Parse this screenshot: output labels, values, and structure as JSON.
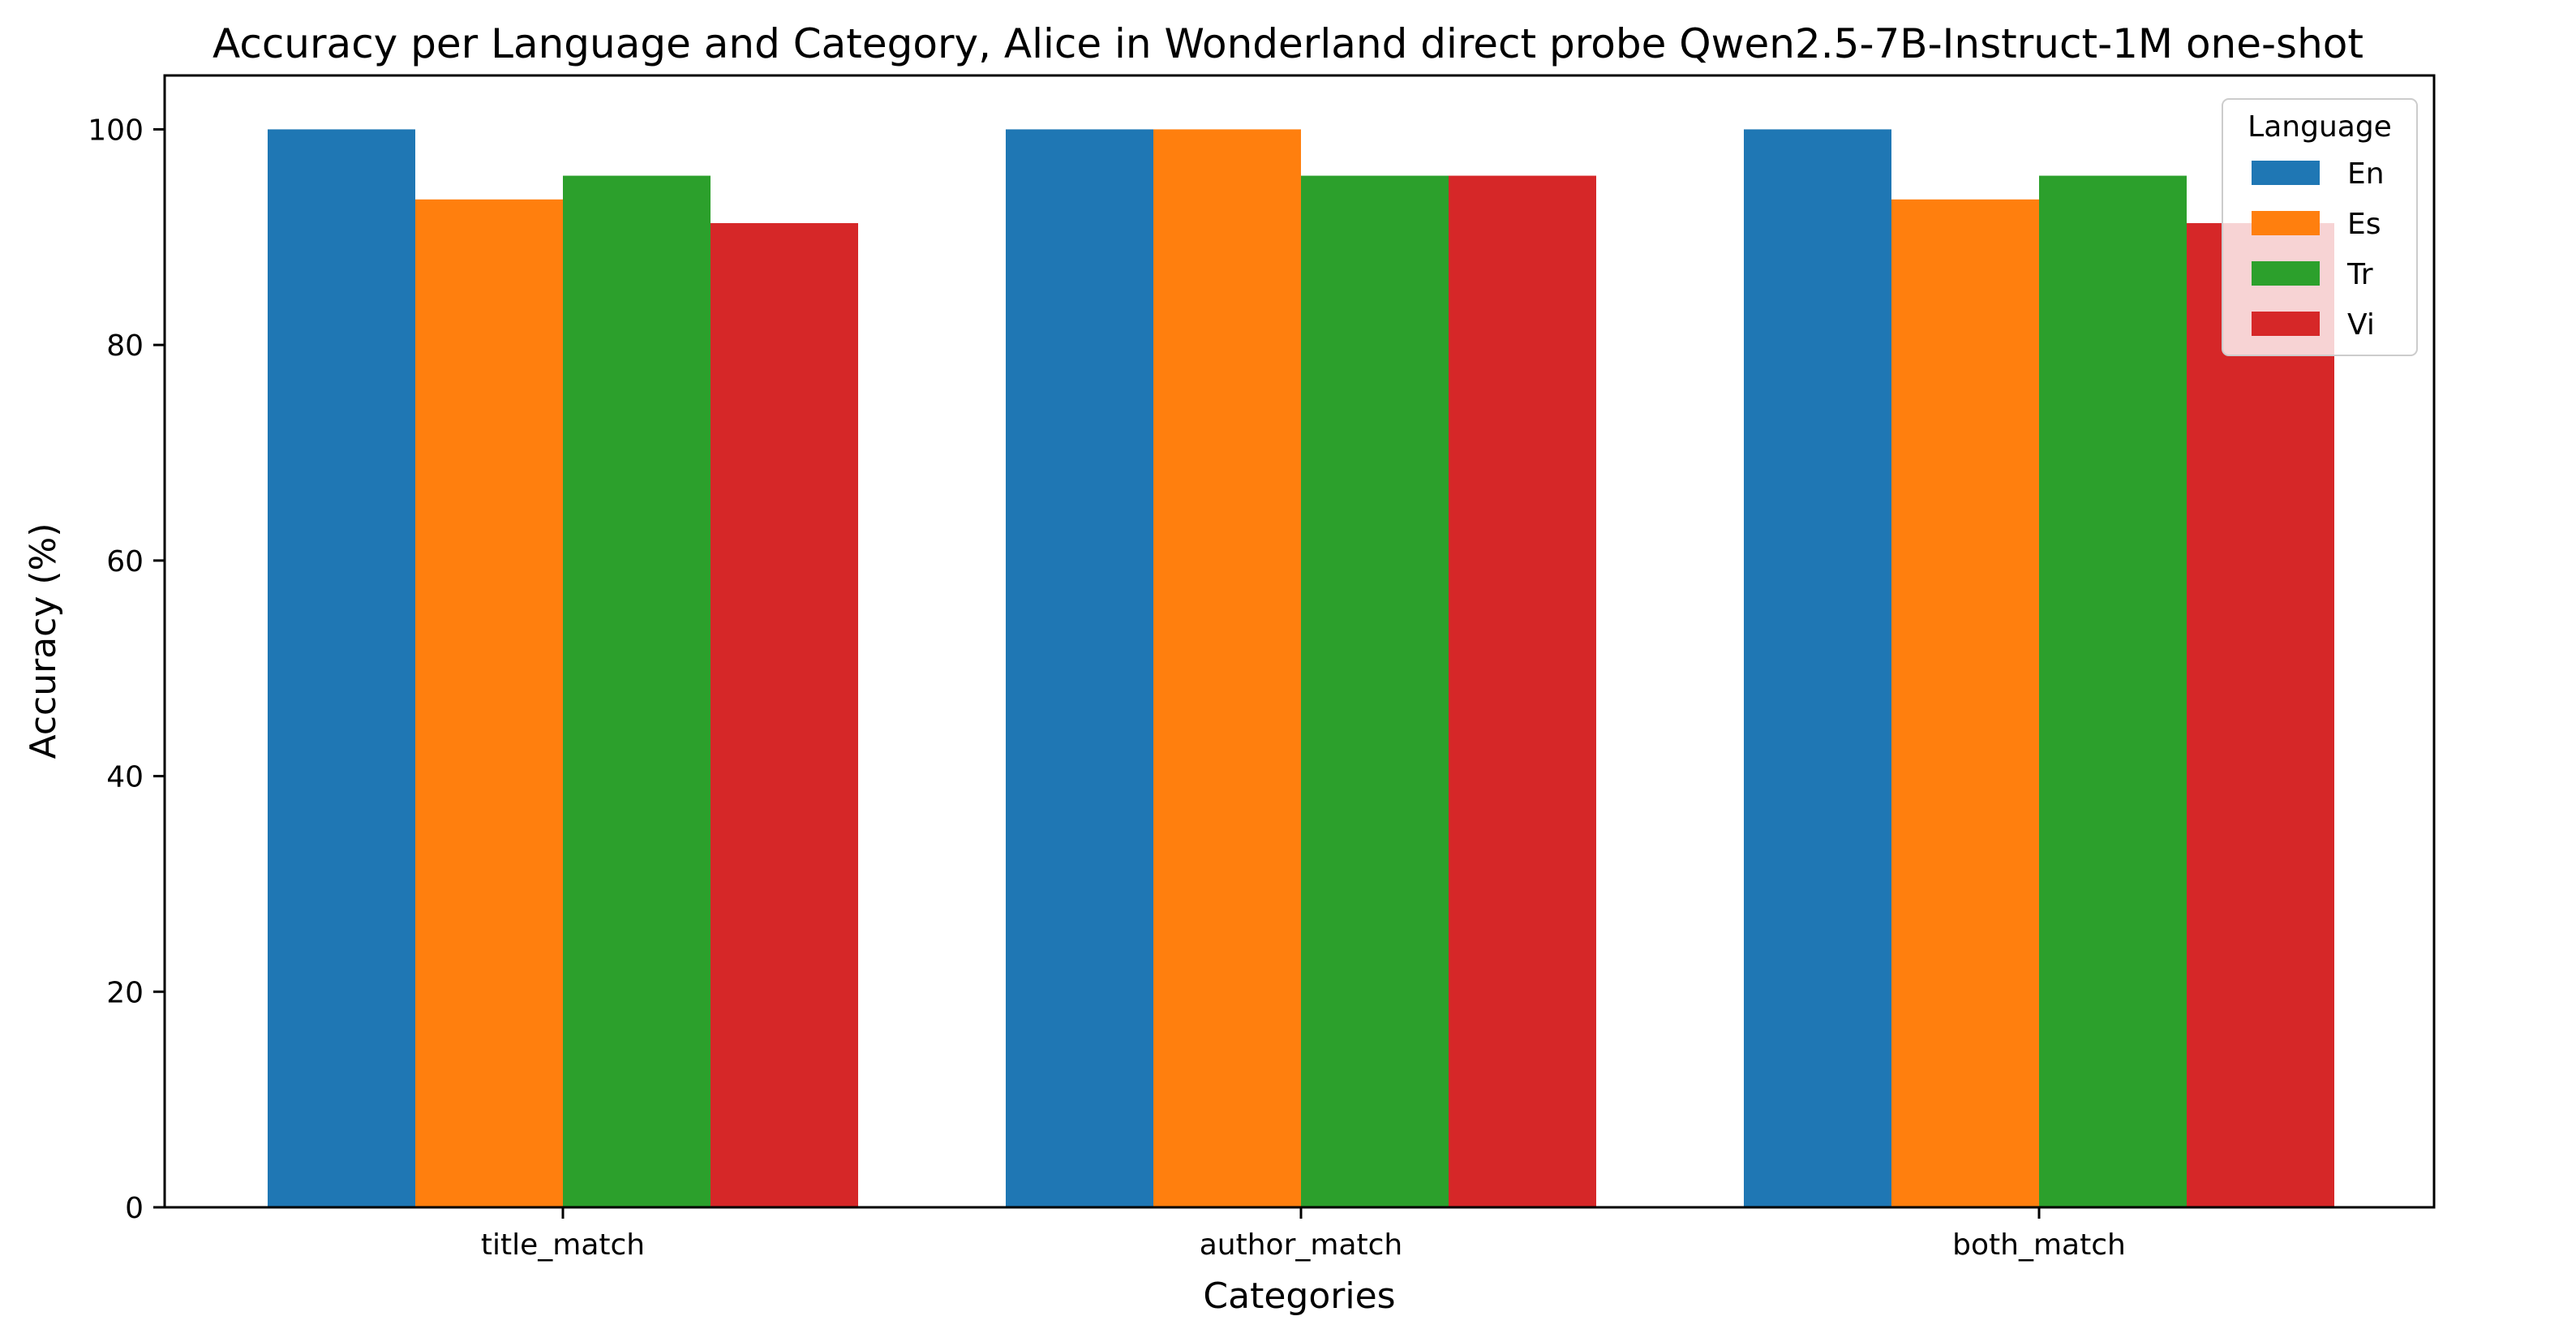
{
  "chart_data": {
    "type": "bar",
    "title": "Accuracy per Language and Category, Alice in Wonderland direct probe Qwen2.5-7B-Instruct-1M one-shot",
    "xlabel": "Categories",
    "ylabel": "Accuracy (%)",
    "categories": [
      "title_match",
      "author_match",
      "both_match"
    ],
    "series": [
      {
        "name": "En",
        "color": "#1f77b4",
        "values": [
          100.0,
          100.0,
          100.0
        ]
      },
      {
        "name": "Es",
        "color": "#ff7f0e",
        "values": [
          93.5,
          100.0,
          93.5
        ]
      },
      {
        "name": "Tr",
        "color": "#2ca02c",
        "values": [
          95.7,
          95.7,
          95.7
        ]
      },
      {
        "name": "Vi",
        "color": "#d62728",
        "values": [
          91.3,
          95.7,
          91.3
        ]
      }
    ],
    "ylim": [
      0,
      105
    ],
    "yticks": [
      0,
      20,
      40,
      60,
      80,
      100
    ],
    "grid": false,
    "legend": {
      "title": "Language",
      "position": "top-right"
    }
  }
}
